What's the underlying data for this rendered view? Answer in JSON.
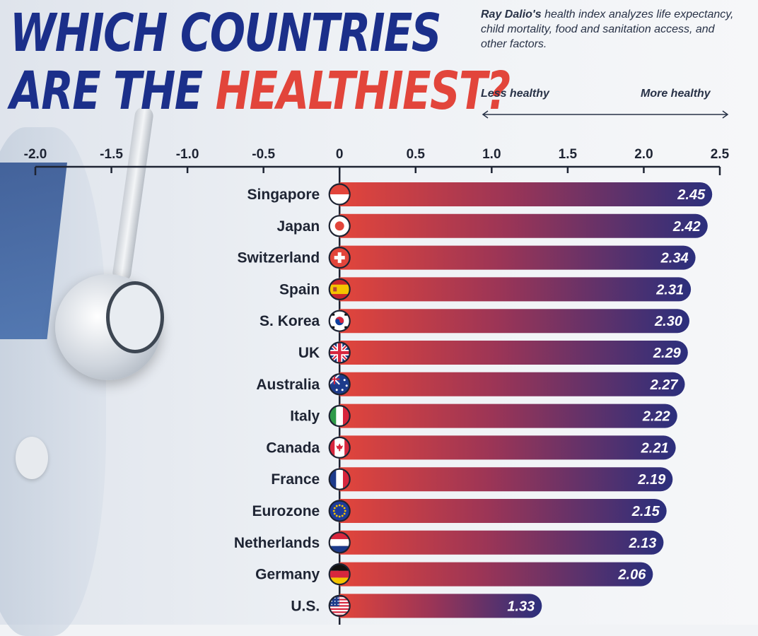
{
  "header": {
    "title_line1": "WHICH COUNTRIES",
    "title_line2_a": "ARE THE",
    "title_line2_b": "HEALTHIEST?",
    "description_bold": "Ray Dalio's",
    "description_rest": "health index analyzes life expectancy, child mortality, food and sanitation access, and other factors.",
    "scale_left": "Less healthy",
    "scale_right": "More healthy"
  },
  "colors": {
    "title_blue": "#1b2f8a",
    "title_red": "#e2453b",
    "bar_start": "#e2453b",
    "bar_end": "#2b2f7c",
    "axis": "#1e2433"
  },
  "chart_data": {
    "type": "bar",
    "orientation": "horizontal",
    "title": "WHICH COUNTRIES ARE THE HEALTHIEST?",
    "xlim": [
      -2.0,
      2.5
    ],
    "ticks": [
      "-2.0",
      "-1.5",
      "-1.0",
      "-0.5",
      "0",
      "0.5",
      "1.0",
      "1.5",
      "2.0",
      "2.5"
    ],
    "tick_values": [
      -2.0,
      -1.5,
      -1.0,
      -0.5,
      0,
      0.5,
      1.0,
      1.5,
      2.0,
      2.5
    ],
    "categories": [
      "Singapore",
      "Japan",
      "Switzerland",
      "Spain",
      "S. Korea",
      "UK",
      "Australia",
      "Italy",
      "Canada",
      "France",
      "Eurozone",
      "Netherlands",
      "Germany",
      "U.S."
    ],
    "values": [
      2.45,
      2.42,
      2.34,
      2.31,
      2.3,
      2.29,
      2.27,
      2.22,
      2.21,
      2.19,
      2.15,
      2.13,
      2.06,
      1.33
    ],
    "value_labels": [
      "2.45",
      "2.42",
      "2.34",
      "2.31",
      "2.30",
      "2.29",
      "2.27",
      "2.22",
      "2.21",
      "2.19",
      "2.15",
      "2.13",
      "2.06",
      "1.33"
    ],
    "flag_icons": [
      "singapore-flag-icon",
      "japan-flag-icon",
      "switzerland-flag-icon",
      "spain-flag-icon",
      "south-korea-flag-icon",
      "uk-flag-icon",
      "australia-flag-icon",
      "italy-flag-icon",
      "canada-flag-icon",
      "france-flag-icon",
      "eurozone-flag-icon",
      "netherlands-flag-icon",
      "germany-flag-icon",
      "us-flag-icon"
    ]
  }
}
